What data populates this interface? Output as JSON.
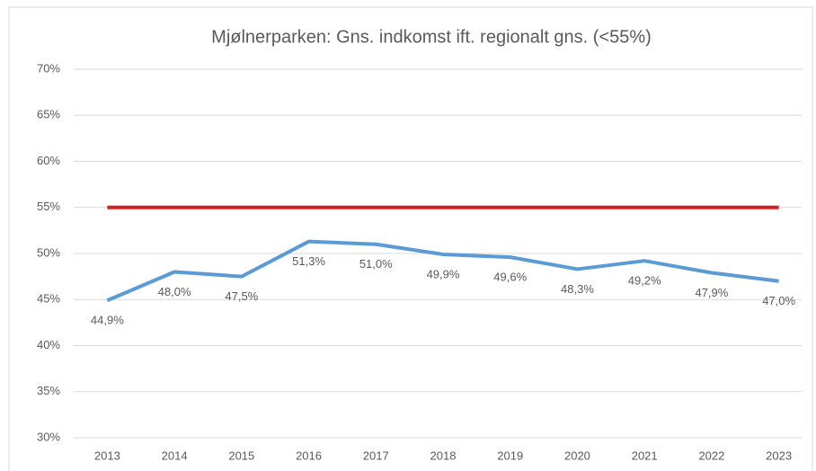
{
  "chart_data": {
    "type": "line",
    "title": "Mjølnerparken: Gns. indkomst ift. regionalt gns. (<55%)",
    "categories": [
      "2013",
      "2014",
      "2015",
      "2016",
      "2017",
      "2018",
      "2019",
      "2020",
      "2021",
      "2022",
      "2023"
    ],
    "series": [
      {
        "color": "#5b9bd5",
        "values": [
          44.9,
          48.0,
          47.5,
          51.3,
          51.0,
          49.9,
          49.6,
          48.3,
          49.2,
          47.9,
          47.0
        ],
        "value_labels": [
          "44,9%",
          "48,0%",
          "47,5%",
          "51,3%",
          "51,0%",
          "49,9%",
          "49,6%",
          "48,3%",
          "49,2%",
          "47,9%",
          "47,0%"
        ]
      },
      {
        "color": "#d42020",
        "values": [
          55,
          55,
          55,
          55,
          55,
          55,
          55,
          55,
          55,
          55,
          55
        ]
      }
    ],
    "ylim": [
      30,
      70
    ],
    "yticks": [
      {
        "value": 30,
        "label": "30%"
      },
      {
        "value": 35,
        "label": "35%"
      },
      {
        "value": 40,
        "label": "40%"
      },
      {
        "value": 45,
        "label": "45%"
      },
      {
        "value": 50,
        "label": "50%"
      },
      {
        "value": 55,
        "label": "55%"
      },
      {
        "value": 60,
        "label": "60%"
      },
      {
        "value": 65,
        "label": "65%"
      },
      {
        "value": 70,
        "label": "70%"
      }
    ],
    "grid": true
  }
}
